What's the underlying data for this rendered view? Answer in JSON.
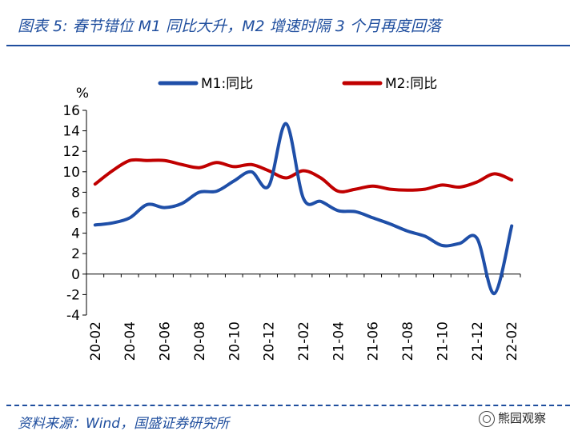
{
  "header": {
    "title": "图表 5:  春节错位 M1 同比大升，M2 增速时隔 3 个月再度回落"
  },
  "footer": {
    "source": "资料来源：Wind，国盛证券研究所",
    "watermark": "熊园观察"
  },
  "chart_data": {
    "type": "line",
    "ylabel": "%",
    "ylim": [
      -4,
      16
    ],
    "yticks": [
      -4,
      -2,
      0,
      2,
      4,
      6,
      8,
      10,
      12,
      14,
      16
    ],
    "x": [
      "20-02",
      "20-03",
      "20-04",
      "20-05",
      "20-06",
      "20-07",
      "20-08",
      "20-09",
      "20-10",
      "20-11",
      "20-12",
      "21-01",
      "21-02",
      "21-03",
      "21-04",
      "21-05",
      "21-06",
      "21-07",
      "21-08",
      "21-09",
      "21-10",
      "21-11",
      "21-12",
      "22-01",
      "22-02"
    ],
    "xticklabels": [
      "20-02",
      "20-04",
      "20-06",
      "20-08",
      "20-10",
      "20-12",
      "21-02",
      "21-04",
      "21-06",
      "21-08",
      "21-10",
      "21-12",
      "22-02"
    ],
    "series": [
      {
        "name": "M1:同比",
        "color": "#1f4fa8",
        "values": [
          4.8,
          5.0,
          5.5,
          6.8,
          6.5,
          6.9,
          8.0,
          8.1,
          9.1,
          10.0,
          8.6,
          14.7,
          7.4,
          7.1,
          6.2,
          6.1,
          5.5,
          4.9,
          4.2,
          3.7,
          2.8,
          3.0,
          3.5,
          -1.9,
          4.7
        ]
      },
      {
        "name": "M2:同比",
        "color": "#c00000",
        "values": [
          8.8,
          10.1,
          11.1,
          11.1,
          11.1,
          10.7,
          10.4,
          10.9,
          10.5,
          10.7,
          10.1,
          9.4,
          10.1,
          9.4,
          8.1,
          8.3,
          8.6,
          8.3,
          8.2,
          8.3,
          8.7,
          8.5,
          9.0,
          9.8,
          9.2
        ]
      }
    ]
  }
}
